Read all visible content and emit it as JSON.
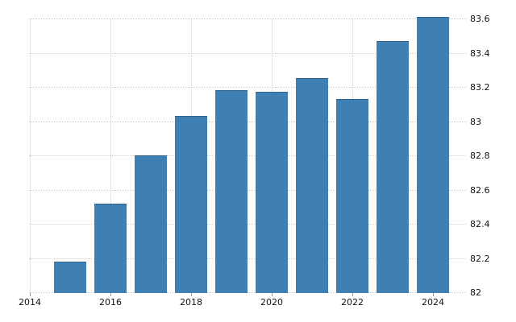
{
  "chart_data": {
    "type": "bar",
    "title": "",
    "xlabel": "",
    "ylabel": "",
    "categories": [
      "2015",
      "2016",
      "2017",
      "2018",
      "2019",
      "2020",
      "2021",
      "2022",
      "2023",
      "2024"
    ],
    "values": [
      82.18,
      82.52,
      82.8,
      83.03,
      83.18,
      83.17,
      83.25,
      83.13,
      83.47,
      83.61
    ],
    "x_axis": {
      "tick_labels": [
        "2014",
        "2016",
        "2018",
        "2020",
        "2022",
        "2024"
      ],
      "range": [
        2014,
        2025
      ]
    },
    "y_axis": {
      "tick_labels": [
        "82",
        "82.2",
        "82.4",
        "82.6",
        "82.8",
        "83",
        "83.2",
        "83.4",
        "83.6"
      ],
      "min": 82,
      "max": 83.6,
      "step": 0.2,
      "position": "right"
    },
    "legend": "none",
    "grid": "dotted",
    "colors": {
      "bar": "#3f80b4",
      "bar_edge": "rgba(0,0,0,0.22)",
      "grid": "#cccccc",
      "tick_text": "#111111",
      "tick_mark": "#999999",
      "background": "#ffffff"
    }
  }
}
